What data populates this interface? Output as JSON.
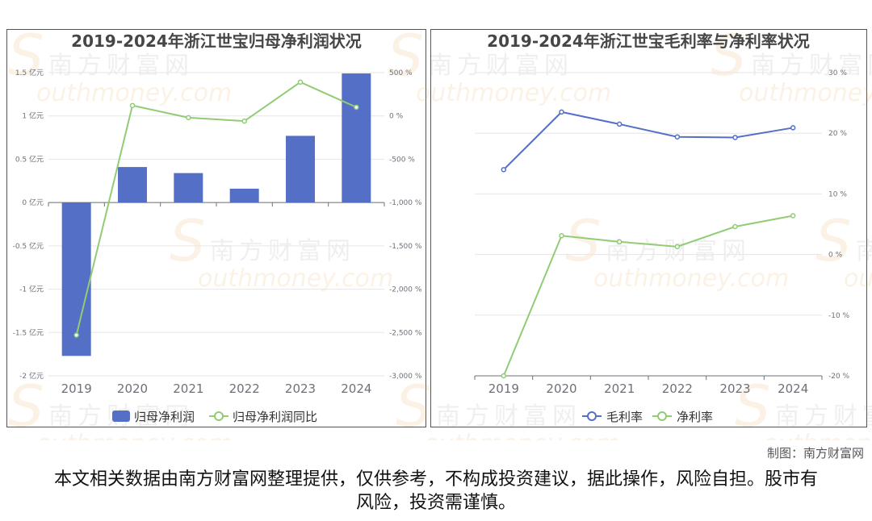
{
  "watermark": {
    "cn": "南方财富网",
    "en": "outhmoney.com",
    "cap": "S"
  },
  "credit": "制图：南方财富网",
  "disclaimer": "本文相关数据由南方财富网整理提供，仅供参考，不构成投资建议，据此操作，风险自担。股市有风险，投资需谨慎。",
  "colors": {
    "bar": "#5470c6",
    "line_green": "#91cc75",
    "line_blue": "#5470c6"
  },
  "chart_data": [
    {
      "type": "bar",
      "title": "2019-2024年浙江世宝归母净利润状况",
      "categories": [
        "2019",
        "2020",
        "2021",
        "2022",
        "2023",
        "2024"
      ],
      "left_axis": {
        "unit": "亿元",
        "ylim": [
          -2,
          1.5
        ],
        "ticks": [
          1.5,
          1,
          0.5,
          0,
          -0.5,
          -1,
          -1.5,
          -2
        ],
        "tick_labels": [
          "1.5 亿元",
          "1 亿元",
          "0.5 亿元",
          "0 亿元",
          "-0.5 亿元",
          "-1 亿元",
          "-1.5 亿元",
          "-2 亿元"
        ]
      },
      "right_axis": {
        "unit": "%",
        "ylim": [
          -3000,
          500
        ],
        "ticks": [
          500,
          0,
          -500,
          -1000,
          -1500,
          -2000,
          -2500,
          -3000
        ],
        "tick_labels": [
          "500 %",
          "0 %",
          "-500 %",
          "-1,000 %",
          "-1,500 %",
          "-2,000 %",
          "-2,500 %",
          "-3,000 %"
        ]
      },
      "series": [
        {
          "name": "归母净利润",
          "kind": "bar",
          "axis": "left",
          "values": [
            -1.77,
            0.41,
            0.34,
            0.16,
            0.77,
            1.49
          ]
        },
        {
          "name": "归母净利润同比",
          "kind": "line",
          "axis": "right",
          "values": [
            -2530,
            120,
            -20,
            -60,
            390,
            100
          ]
        }
      ],
      "legend": "bottom"
    },
    {
      "type": "line",
      "title": "2019-2024年浙江世宝毛利率与净利率状况",
      "categories": [
        "2019",
        "2020",
        "2021",
        "2022",
        "2023",
        "2024"
      ],
      "right_axis": {
        "unit": "%",
        "ylim": [
          -20,
          30
        ],
        "ticks": [
          30,
          20,
          10,
          0,
          -10,
          -20
        ],
        "tick_labels": [
          "30 %",
          "20 %",
          "10 %",
          "0 %",
          "-10 %",
          "-20 %"
        ]
      },
      "series": [
        {
          "name": "毛利率",
          "values": [
            14.0,
            23.5,
            21.5,
            19.4,
            19.3,
            20.9
          ]
        },
        {
          "name": "净利率",
          "values": [
            -20.0,
            3.1,
            2.1,
            1.3,
            4.6,
            6.4
          ]
        }
      ],
      "legend": "bottom"
    }
  ]
}
